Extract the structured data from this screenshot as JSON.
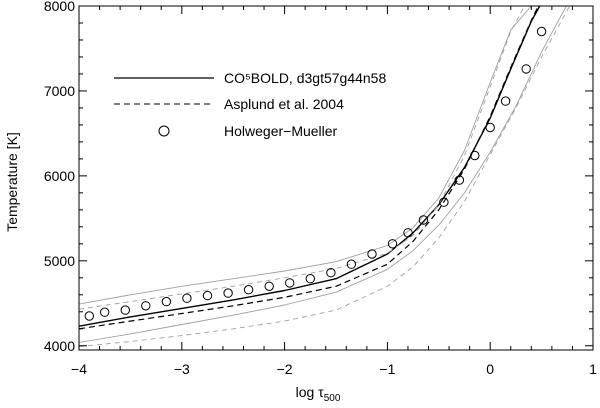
{
  "chart_data": {
    "type": "line",
    "xlabel": "log τ",
    "xlabel_main": "log τ",
    "xlabel_sub": "500",
    "ylabel": "Temperature [K]",
    "xlim": [
      -4,
      1
    ],
    "ylim": [
      3950,
      8000
    ],
    "x_ticks": [
      -4,
      -3,
      -2,
      -1,
      0,
      1
    ],
    "x_tick_labels": [
      "−4",
      "−3",
      "−2",
      "−1",
      "0",
      "1"
    ],
    "y_ticks": [
      4000,
      5000,
      6000,
      7000,
      8000
    ],
    "y_tick_labels": [
      "4000",
      "5000",
      "6000",
      "7000",
      "8000"
    ],
    "grid": false,
    "legend_position": "upper-left",
    "legend": [
      {
        "key": "cobold",
        "label": "CO⁵BOLD, d3gt57g44n58",
        "style": "solid"
      },
      {
        "key": "asplund",
        "label": "Asplund et al. 2004",
        "style": "dashed"
      },
      {
        "key": "hm",
        "label": "Holweger−Mueller",
        "style": "circle"
      }
    ],
    "series": [
      {
        "key": "cobold",
        "style": "solid",
        "color": "#000000",
        "x": [
          -4.0,
          -3.5,
          -3.0,
          -2.5,
          -2.0,
          -1.5,
          -1.0,
          -0.75,
          -0.5,
          -0.25,
          0.0,
          0.2,
          0.4,
          0.55
        ],
        "y": [
          4230,
          4340,
          4440,
          4540,
          4650,
          4790,
          5080,
          5330,
          5660,
          6100,
          6680,
          7260,
          7820,
          8150
        ]
      },
      {
        "key": "cobold_sigma_upper",
        "style": "thin-gray",
        "color": "#a0a0a0",
        "x": [
          -4.0,
          -3.5,
          -3.0,
          -2.5,
          -2.0,
          -1.5,
          -1.0,
          -0.75,
          -0.5,
          -0.25,
          0.0,
          0.2,
          0.4,
          0.5
        ],
        "y": [
          4490,
          4600,
          4700,
          4790,
          4880,
          4990,
          5180,
          5390,
          5740,
          6300,
          7100,
          7720,
          8000,
          8180
        ]
      },
      {
        "key": "cobold_sigma_lower",
        "style": "thin-gray",
        "color": "#a0a0a0",
        "x": [
          -4.0,
          -3.5,
          -3.0,
          -2.5,
          -2.0,
          -1.5,
          -1.0,
          -0.75,
          -0.5,
          -0.25,
          0.0,
          0.25,
          0.5,
          0.75,
          0.9
        ],
        "y": [
          4040,
          4140,
          4250,
          4360,
          4480,
          4630,
          4900,
          5120,
          5420,
          5800,
          6280,
          6820,
          7460,
          8020,
          8350
        ]
      },
      {
        "key": "asplund",
        "style": "dashed",
        "color": "#000000",
        "x": [
          -4.0,
          -3.5,
          -3.0,
          -2.5,
          -2.0,
          -1.5,
          -1.0,
          -0.75,
          -0.5,
          -0.25,
          0.0,
          0.2,
          0.4,
          0.55
        ],
        "y": [
          4200,
          4290,
          4380,
          4470,
          4570,
          4700,
          4960,
          5230,
          5600,
          6080,
          6700,
          7280,
          7830,
          8200
        ]
      },
      {
        "key": "asplund_sigma_upper",
        "style": "thin-gray-dashed",
        "color": "#a0a0a0",
        "x": [
          -4.0,
          -3.5,
          -3.0,
          -2.5,
          -2.0,
          -1.5,
          -1.0,
          -0.75,
          -0.5,
          -0.25,
          0.0,
          0.2,
          0.4
        ],
        "y": [
          4430,
          4520,
          4610,
          4700,
          4800,
          4910,
          5090,
          5300,
          5660,
          6240,
          7050,
          7700,
          8150
        ]
      },
      {
        "key": "asplund_sigma_lower",
        "style": "thin-gray-dashed",
        "color": "#a0a0a0",
        "x": [
          -4.0,
          -3.5,
          -3.0,
          -2.5,
          -2.0,
          -1.5,
          -1.0,
          -0.75,
          -0.5,
          -0.25,
          0.0,
          0.25,
          0.5,
          0.75,
          0.9
        ],
        "y": [
          3990,
          4050,
          4120,
          4200,
          4290,
          4420,
          4700,
          4930,
          5270,
          5700,
          6250,
          6800,
          7400,
          7950,
          8250
        ]
      },
      {
        "key": "hm",
        "style": "circle",
        "color": "#000000",
        "x": [
          -3.9,
          -3.75,
          -3.55,
          -3.35,
          -3.15,
          -2.95,
          -2.75,
          -2.55,
          -2.35,
          -2.15,
          -1.95,
          -1.75,
          -1.55,
          -1.35,
          -1.15,
          -0.95,
          -0.8,
          -0.65,
          -0.45,
          -0.3,
          -0.15,
          0.0,
          0.15,
          0.35,
          0.5
        ],
        "y": [
          4350,
          4395,
          4420,
          4470,
          4520,
          4560,
          4590,
          4620,
          4660,
          4700,
          4740,
          4790,
          4860,
          4960,
          5080,
          5200,
          5330,
          5480,
          5690,
          5950,
          6240,
          6570,
          6880,
          7260,
          7700
        ]
      }
    ]
  }
}
